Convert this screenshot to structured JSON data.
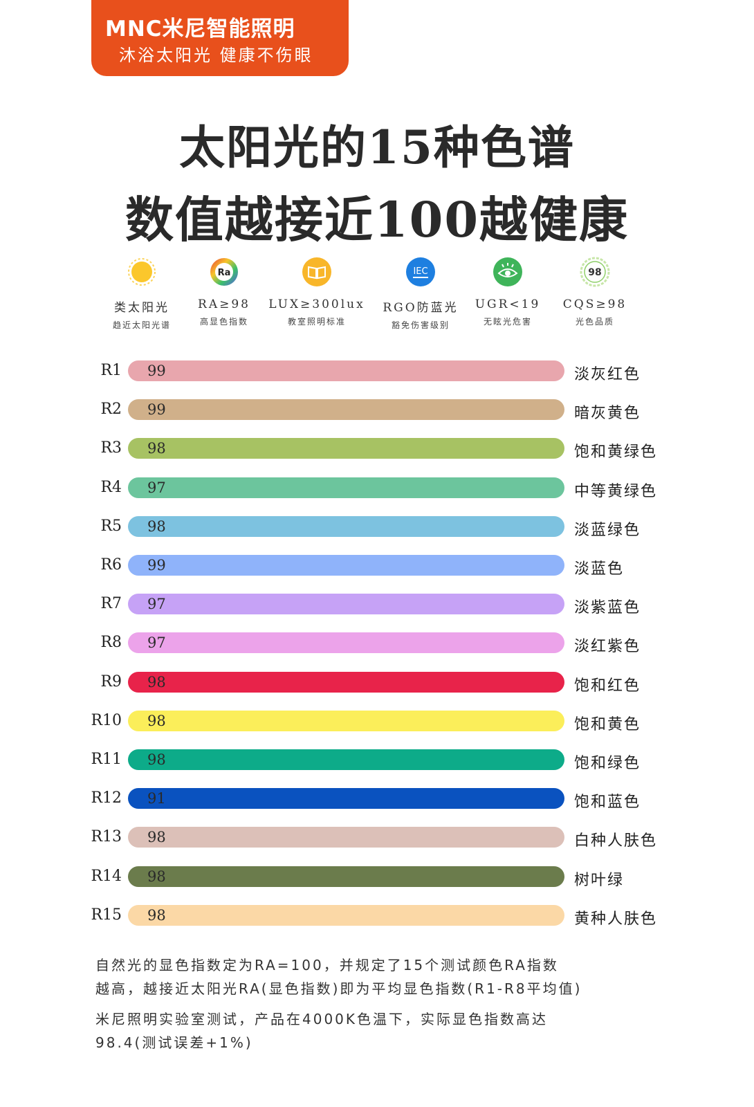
{
  "brand": {
    "logo": "MNC米尼智能照明",
    "slogan": "沐浴太阳光 健康不伤眼",
    "color": "#e8501c"
  },
  "title": {
    "line1": "太阳光的15种色谱",
    "line2": "数值越接近100越健康"
  },
  "features": [
    {
      "icon": "sun-icon",
      "badge": "",
      "name": "类太阳光",
      "sub": "趋近太阳光谱"
    },
    {
      "icon": "ra-icon",
      "badge": "Ra",
      "name": "RA≥98",
      "sub": "高显色指数"
    },
    {
      "icon": "book-icon",
      "badge": "",
      "name": "LUX≥300lux",
      "sub": "教室照明标准"
    },
    {
      "icon": "iec-icon",
      "badge": "IEC",
      "name": "RGO防蓝光",
      "sub": "豁免伤害级别"
    },
    {
      "icon": "eye-icon",
      "badge": "",
      "name": "UGR<19",
      "sub": "无眩光危害"
    },
    {
      "icon": "cqs-icon",
      "badge": "98",
      "name": "CQS≥98",
      "sub": "光色品质"
    }
  ],
  "chart_data": {
    "type": "bar",
    "categories": [
      "R1",
      "R2",
      "R3",
      "R4",
      "R5",
      "R6",
      "R7",
      "R8",
      "R9",
      "R10",
      "R11",
      "R12",
      "R13",
      "R14",
      "R15"
    ],
    "values": [
      99,
      99,
      98,
      97,
      98,
      99,
      97,
      97,
      98,
      98,
      98,
      91,
      98,
      98,
      98
    ],
    "color_names": [
      "淡灰红色",
      "暗灰黄色",
      "饱和黄绿色",
      "中等黄绿色",
      "淡蓝绿色",
      "淡蓝色",
      "淡紫蓝色",
      "淡红紫色",
      "饱和红色",
      "饱和黄色",
      "饱和绿色",
      "饱和蓝色",
      "白种人肤色",
      "树叶绿",
      "黄种人肤色"
    ],
    "colors": [
      "#e8a6ad",
      "#d0b08a",
      "#a7c263",
      "#6cc59d",
      "#7dc2e0",
      "#8fb3fa",
      "#c6a2f6",
      "#eca3ea",
      "#e8234a",
      "#fbee5a",
      "#0dab89",
      "#0a52bf",
      "#dcc0b8",
      "#6b7c4c",
      "#fbd8a6"
    ]
  },
  "footer": {
    "line1": "自然光的显色指数定为RA=100，并规定了15个测试颜色RA指数",
    "line2": "越高，越接近太阳光RA(显色指数)即为平均显色指数(R1-R8平均值)",
    "line3": "米尼照明实验室测试，产品在4000K色温下，实际显色指数高达",
    "line4": "98.4(测试误差+1%)"
  }
}
